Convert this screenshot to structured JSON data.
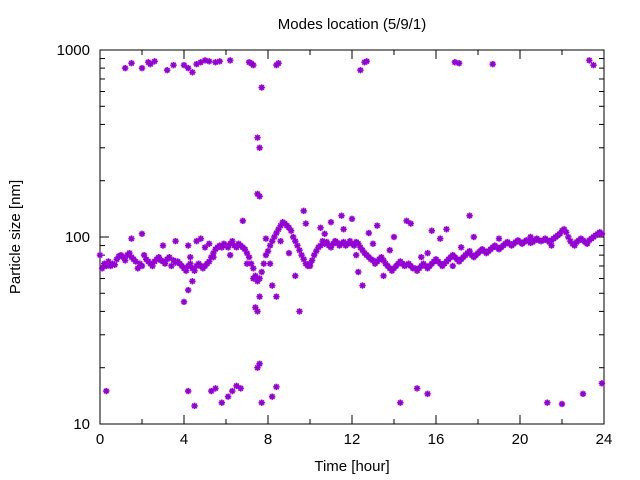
{
  "chart_data": {
    "type": "scatter",
    "title": "Modes location (5/9/1)",
    "xlabel": "Time [hour]",
    "ylabel": "Particle size [nm]",
    "xlim": [
      0,
      24
    ],
    "ylim": [
      10,
      1000
    ],
    "yscale": "log",
    "xticks": [
      0,
      4,
      8,
      12,
      16,
      20,
      24
    ],
    "yticks": [
      10,
      100,
      1000
    ],
    "grid": false,
    "marker_color": "#9400d3",
    "points": [
      [
        0.0,
        80
      ],
      [
        0.1,
        68
      ],
      [
        0.2,
        72
      ],
      [
        0.3,
        70
      ],
      [
        0.4,
        74
      ],
      [
        0.5,
        70
      ],
      [
        0.6,
        72
      ],
      [
        0.7,
        71
      ],
      [
        0.8,
        76
      ],
      [
        0.9,
        79
      ],
      [
        1.0,
        80
      ],
      [
        1.1,
        78
      ],
      [
        1.2,
        75
      ],
      [
        1.3,
        80
      ],
      [
        1.4,
        82
      ],
      [
        1.5,
        78
      ],
      [
        1.6,
        76
      ],
      [
        1.7,
        74
      ],
      [
        1.8,
        68
      ],
      [
        1.9,
        72
      ],
      [
        2.0,
        70
      ],
      [
        2.1,
        80
      ],
      [
        2.2,
        76
      ],
      [
        2.3,
        74
      ],
      [
        2.4,
        72
      ],
      [
        2.5,
        70
      ],
      [
        2.6,
        74
      ],
      [
        2.7,
        76
      ],
      [
        2.8,
        78
      ],
      [
        2.9,
        75
      ],
      [
        3.0,
        74
      ],
      [
        3.1,
        72
      ],
      [
        3.2,
        76
      ],
      [
        3.3,
        78
      ],
      [
        3.4,
        70
      ],
      [
        3.5,
        75
      ],
      [
        3.6,
        73
      ],
      [
        3.7,
        74
      ],
      [
        3.8,
        72
      ],
      [
        3.9,
        70
      ],
      [
        4.0,
        68
      ],
      [
        4.1,
        66
      ],
      [
        4.2,
        70
      ],
      [
        4.3,
        72
      ],
      [
        4.4,
        68
      ],
      [
        4.5,
        66
      ],
      [
        4.6,
        70
      ],
      [
        4.7,
        72
      ],
      [
        4.8,
        70
      ],
      [
        4.9,
        68
      ],
      [
        5.0,
        70
      ],
      [
        5.1,
        72
      ],
      [
        5.2,
        74
      ],
      [
        5.3,
        78
      ],
      [
        5.4,
        82
      ],
      [
        5.5,
        86
      ],
      [
        5.6,
        88
      ],
      [
        5.7,
        90
      ],
      [
        5.8,
        88
      ],
      [
        5.9,
        92
      ],
      [
        6.0,
        90
      ],
      [
        6.1,
        88
      ],
      [
        6.2,
        92
      ],
      [
        6.3,
        95
      ],
      [
        6.4,
        90
      ],
      [
        6.5,
        88
      ],
      [
        6.6,
        92
      ],
      [
        6.7,
        90
      ],
      [
        6.8,
        88
      ],
      [
        6.9,
        86
      ],
      [
        7.0,
        82
      ],
      [
        7.1,
        78
      ],
      [
        7.2,
        72
      ],
      [
        7.3,
        68
      ],
      [
        7.4,
        62
      ],
      [
        7.5,
        58
      ],
      [
        7.6,
        60
      ],
      [
        7.7,
        65
      ],
      [
        7.8,
        72
      ],
      [
        7.9,
        80
      ],
      [
        8.0,
        84
      ],
      [
        8.1,
        90
      ],
      [
        8.2,
        95
      ],
      [
        8.3,
        100
      ],
      [
        8.4,
        105
      ],
      [
        8.5,
        110
      ],
      [
        8.6,
        115
      ],
      [
        8.7,
        120
      ],
      [
        8.8,
        118
      ],
      [
        8.9,
        115
      ],
      [
        9.0,
        112
      ],
      [
        9.1,
        108
      ],
      [
        9.2,
        100
      ],
      [
        9.3,
        95
      ],
      [
        9.4,
        90
      ],
      [
        9.5,
        85
      ],
      [
        9.6,
        80
      ],
      [
        9.7,
        76
      ],
      [
        9.8,
        72
      ],
      [
        9.9,
        70
      ],
      [
        10.0,
        72
      ],
      [
        10.1,
        75
      ],
      [
        10.2,
        80
      ],
      [
        10.3,
        84
      ],
      [
        10.4,
        88
      ],
      [
        10.5,
        90
      ],
      [
        10.6,
        95
      ],
      [
        10.7,
        92
      ],
      [
        10.8,
        94
      ],
      [
        10.9,
        90
      ],
      [
        11.0,
        88
      ],
      [
        11.1,
        92
      ],
      [
        11.2,
        95
      ],
      [
        11.3,
        93
      ],
      [
        11.4,
        90
      ],
      [
        11.5,
        92
      ],
      [
        11.6,
        94
      ],
      [
        11.7,
        90
      ],
      [
        11.8,
        92
      ],
      [
        11.9,
        95
      ],
      [
        12.0,
        92
      ],
      [
        12.1,
        90
      ],
      [
        12.2,
        94
      ],
      [
        12.3,
        92
      ],
      [
        12.4,
        88
      ],
      [
        12.5,
        85
      ],
      [
        12.6,
        82
      ],
      [
        12.7,
        80
      ],
      [
        12.8,
        78
      ],
      [
        12.9,
        76
      ],
      [
        13.0,
        75
      ],
      [
        13.1,
        72
      ],
      [
        13.2,
        74
      ],
      [
        13.3,
        76
      ],
      [
        13.4,
        78
      ],
      [
        13.5,
        75
      ],
      [
        13.6,
        72
      ],
      [
        13.7,
        70
      ],
      [
        13.8,
        68
      ],
      [
        13.9,
        66
      ],
      [
        14.0,
        68
      ],
      [
        14.1,
        70
      ],
      [
        14.2,
        72
      ],
      [
        14.3,
        74
      ],
      [
        14.4,
        72
      ],
      [
        14.5,
        70
      ],
      [
        14.6,
        71
      ],
      [
        14.7,
        72
      ],
      [
        14.8,
        70
      ],
      [
        14.9,
        68
      ],
      [
        15.0,
        68
      ],
      [
        15.1,
        66
      ],
      [
        15.2,
        68
      ],
      [
        15.3,
        70
      ],
      [
        15.4,
        72
      ],
      [
        15.5,
        70
      ],
      [
        15.6,
        68
      ],
      [
        15.7,
        70
      ],
      [
        15.8,
        72
      ],
      [
        15.9,
        74
      ],
      [
        16.0,
        76
      ],
      [
        16.1,
        74
      ],
      [
        16.2,
        72
      ],
      [
        16.3,
        70
      ],
      [
        16.4,
        72
      ],
      [
        16.5,
        74
      ],
      [
        16.6,
        76
      ],
      [
        16.7,
        78
      ],
      [
        16.8,
        80
      ],
      [
        16.9,
        78
      ],
      [
        17.0,
        76
      ],
      [
        17.1,
        74
      ],
      [
        17.2,
        76
      ],
      [
        17.3,
        78
      ],
      [
        17.4,
        80
      ],
      [
        17.5,
        82
      ],
      [
        17.6,
        84
      ],
      [
        17.7,
        80
      ],
      [
        17.8,
        78
      ],
      [
        17.9,
        80
      ],
      [
        18.0,
        82
      ],
      [
        18.1,
        84
      ],
      [
        18.2,
        86
      ],
      [
        18.3,
        84
      ],
      [
        18.4,
        82
      ],
      [
        18.5,
        84
      ],
      [
        18.6,
        86
      ],
      [
        18.7,
        88
      ],
      [
        18.8,
        90
      ],
      [
        18.9,
        88
      ],
      [
        19.0,
        86
      ],
      [
        19.1,
        88
      ],
      [
        19.2,
        90
      ],
      [
        19.3,
        92
      ],
      [
        19.4,
        94
      ],
      [
        19.5,
        92
      ],
      [
        19.6,
        90
      ],
      [
        19.7,
        92
      ],
      [
        19.8,
        94
      ],
      [
        19.9,
        96
      ],
      [
        20.0,
        94
      ],
      [
        20.1,
        92
      ],
      [
        20.2,
        94
      ],
      [
        20.3,
        96
      ],
      [
        20.4,
        95
      ],
      [
        20.5,
        93
      ],
      [
        20.6,
        94
      ],
      [
        20.7,
        96
      ],
      [
        20.8,
        98
      ],
      [
        20.9,
        96
      ],
      [
        21.0,
        95
      ],
      [
        21.1,
        96
      ],
      [
        21.2,
        98
      ],
      [
        21.3,
        96
      ],
      [
        21.4,
        94
      ],
      [
        21.5,
        96
      ],
      [
        21.6,
        98
      ],
      [
        21.7,
        100
      ],
      [
        21.8,
        102
      ],
      [
        21.9,
        104
      ],
      [
        22.0,
        108
      ],
      [
        22.1,
        110
      ],
      [
        22.2,
        106
      ],
      [
        22.3,
        100
      ],
      [
        22.4,
        95
      ],
      [
        22.5,
        92
      ],
      [
        22.6,
        90
      ],
      [
        22.7,
        94
      ],
      [
        22.8,
        96
      ],
      [
        22.9,
        98
      ],
      [
        23.0,
        96
      ],
      [
        23.1,
        94
      ],
      [
        23.2,
        92
      ],
      [
        23.3,
        96
      ],
      [
        23.4,
        98
      ],
      [
        23.5,
        100
      ],
      [
        23.6,
        102
      ],
      [
        23.7,
        104
      ],
      [
        23.8,
        106
      ],
      [
        23.9,
        104
      ],
      [
        1.5,
        98
      ],
      [
        2.0,
        104
      ],
      [
        3.0,
        90
      ],
      [
        3.6,
        95
      ],
      [
        4.2,
        90
      ],
      [
        4.3,
        78
      ],
      [
        4.6,
        95
      ],
      [
        4.8,
        98
      ],
      [
        5.0,
        88
      ],
      [
        5.2,
        92
      ],
      [
        5.4,
        78
      ],
      [
        6.2,
        80
      ],
      [
        6.8,
        122
      ],
      [
        7.0,
        72
      ],
      [
        7.3,
        60
      ],
      [
        7.4,
        42
      ],
      [
        7.5,
        40
      ],
      [
        7.6,
        48
      ],
      [
        7.9,
        98
      ],
      [
        8.1,
        72
      ],
      [
        8.2,
        55
      ],
      [
        8.4,
        48
      ],
      [
        8.6,
        95
      ],
      [
        9.0,
        82
      ],
      [
        9.3,
        62
      ],
      [
        9.5,
        40
      ],
      [
        9.7,
        138
      ],
      [
        9.8,
        118
      ],
      [
        10.0,
        70
      ],
      [
        10.5,
        112
      ],
      [
        10.7,
        104
      ],
      [
        11.0,
        120
      ],
      [
        11.2,
        95
      ],
      [
        11.5,
        130
      ],
      [
        11.6,
        110
      ],
      [
        12.0,
        125
      ],
      [
        12.2,
        80
      ],
      [
        12.3,
        65
      ],
      [
        12.5,
        55
      ],
      [
        12.8,
        105
      ],
      [
        13.0,
        92
      ],
      [
        13.2,
        115
      ],
      [
        13.5,
        62
      ],
      [
        13.8,
        85
      ],
      [
        14.0,
        100
      ],
      [
        14.4,
        72
      ],
      [
        14.6,
        122
      ],
      [
        14.8,
        118
      ],
      [
        15.3,
        78
      ],
      [
        15.6,
        82
      ],
      [
        15.8,
        108
      ],
      [
        16.2,
        98
      ],
      [
        16.5,
        110
      ],
      [
        16.8,
        70
      ],
      [
        17.2,
        88
      ],
      [
        17.6,
        130
      ],
      [
        17.8,
        100
      ],
      [
        19.0,
        98
      ],
      [
        20.5,
        100
      ],
      [
        21.5,
        90
      ],
      [
        4.0,
        45
      ],
      [
        4.2,
        52
      ],
      [
        4.4,
        58
      ],
      [
        0.3,
        15
      ],
      [
        4.2,
        15
      ],
      [
        4.5,
        12.5
      ],
      [
        5.3,
        15
      ],
      [
        5.5,
        15.5
      ],
      [
        5.8,
        13
      ],
      [
        6.1,
        14
      ],
      [
        6.3,
        15
      ],
      [
        6.5,
        16
      ],
      [
        6.7,
        15.5
      ],
      [
        7.5,
        20
      ],
      [
        7.6,
        21
      ],
      [
        7.7,
        13
      ],
      [
        8.2,
        14
      ],
      [
        8.4,
        15.8
      ],
      [
        14.3,
        13
      ],
      [
        15.1,
        15.5
      ],
      [
        15.6,
        14.5
      ],
      [
        21.3,
        13
      ],
      [
        22.0,
        12.8
      ],
      [
        23.0,
        14.5
      ],
      [
        23.9,
        16.5
      ],
      [
        7.5,
        170
      ],
      [
        7.6,
        165
      ],
      [
        7.5,
        340
      ],
      [
        7.6,
        300
      ],
      [
        7.7,
        630
      ],
      [
        1.2,
        800
      ],
      [
        1.5,
        850
      ],
      [
        2.0,
        800
      ],
      [
        2.3,
        860
      ],
      [
        2.6,
        870
      ],
      [
        2.4,
        840
      ],
      [
        3.2,
        780
      ],
      [
        3.5,
        830
      ],
      [
        4.0,
        830
      ],
      [
        4.2,
        800
      ],
      [
        4.4,
        760
      ],
      [
        4.6,
        840
      ],
      [
        4.8,
        860
      ],
      [
        5.0,
        880
      ],
      [
        5.2,
        870
      ],
      [
        5.5,
        860
      ],
      [
        5.7,
        870
      ],
      [
        6.2,
        880
      ],
      [
        7.1,
        860
      ],
      [
        7.2,
        850
      ],
      [
        7.3,
        830
      ],
      [
        8.4,
        830
      ],
      [
        8.5,
        850
      ],
      [
        12.4,
        780
      ],
      [
        12.6,
        860
      ],
      [
        12.7,
        870
      ],
      [
        16.9,
        860
      ],
      [
        17.1,
        850
      ],
      [
        18.7,
        840
      ],
      [
        23.3,
        880
      ],
      [
        23.5,
        830
      ]
    ]
  }
}
